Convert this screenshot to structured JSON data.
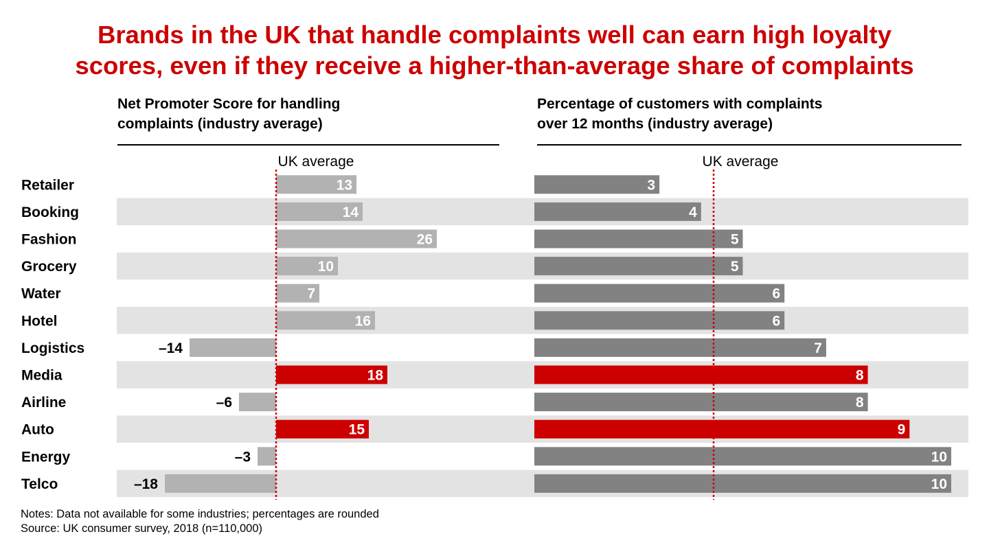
{
  "title": {
    "line1": "Brands in the UK that handle complaints well can earn high loyalty",
    "line2": "scores, even if they receive a higher-than-average share of complaints"
  },
  "notes": {
    "line1": "Notes: Data not available for some industries; percentages are rounded",
    "line2": "Source: UK consumer survey, 2018 (n=110,000)"
  },
  "colors": {
    "title": "#cc0000",
    "highlight": "#cc0000",
    "nps_bar": "#b2b2b2",
    "complaints_bar": "#828282",
    "band": "#e3e3e3",
    "average_line": "#cc0000"
  },
  "chart_data": [
    {
      "type": "bar",
      "orientation": "horizontal",
      "title_lines": [
        "Net Promoter Score for handling",
        "complaints (industry average)"
      ],
      "reference_line": {
        "label": "UK average",
        "value": 0,
        "style": "dotted",
        "color": "#cc0000"
      },
      "categories": [
        "Retailer",
        "Booking",
        "Fashion",
        "Grocery",
        "Water",
        "Hotel",
        "Logistics",
        "Media",
        "Airline",
        "Auto",
        "Energy",
        "Telco"
      ],
      "values": [
        13,
        14,
        26,
        10,
        7,
        16,
        -14,
        18,
        -6,
        15,
        -3,
        -18
      ],
      "value_labels": [
        "13",
        "14",
        "26",
        "10",
        "7",
        "16",
        "–14",
        "18",
        "–6",
        "15",
        "–3",
        "–18"
      ],
      "highlighted": [
        "Media",
        "Auto"
      ],
      "xlim": [
        -26,
        36
      ],
      "grid": false
    },
    {
      "type": "bar",
      "orientation": "horizontal",
      "title_lines": [
        "Percentage of customers with complaints",
        "over 12 months (industry average)"
      ],
      "reference_line": {
        "label": "UK average",
        "value": 4.3,
        "style": "dotted",
        "color": "#cc0000"
      },
      "categories": [
        "Retailer",
        "Booking",
        "Fashion",
        "Grocery",
        "Water",
        "Hotel",
        "Logistics",
        "Media",
        "Airline",
        "Auto",
        "Energy",
        "Telco"
      ],
      "values": [
        3,
        4,
        5,
        5,
        6,
        6,
        7,
        8,
        8,
        9,
        10,
        10
      ],
      "value_labels": [
        "3",
        "4",
        "5",
        "5",
        "6",
        "6",
        "7",
        "8",
        "8",
        "9",
        "10",
        "10"
      ],
      "highlighted": [
        "Media",
        "Auto"
      ],
      "xlim": [
        0,
        10.5
      ],
      "grid": false
    }
  ]
}
